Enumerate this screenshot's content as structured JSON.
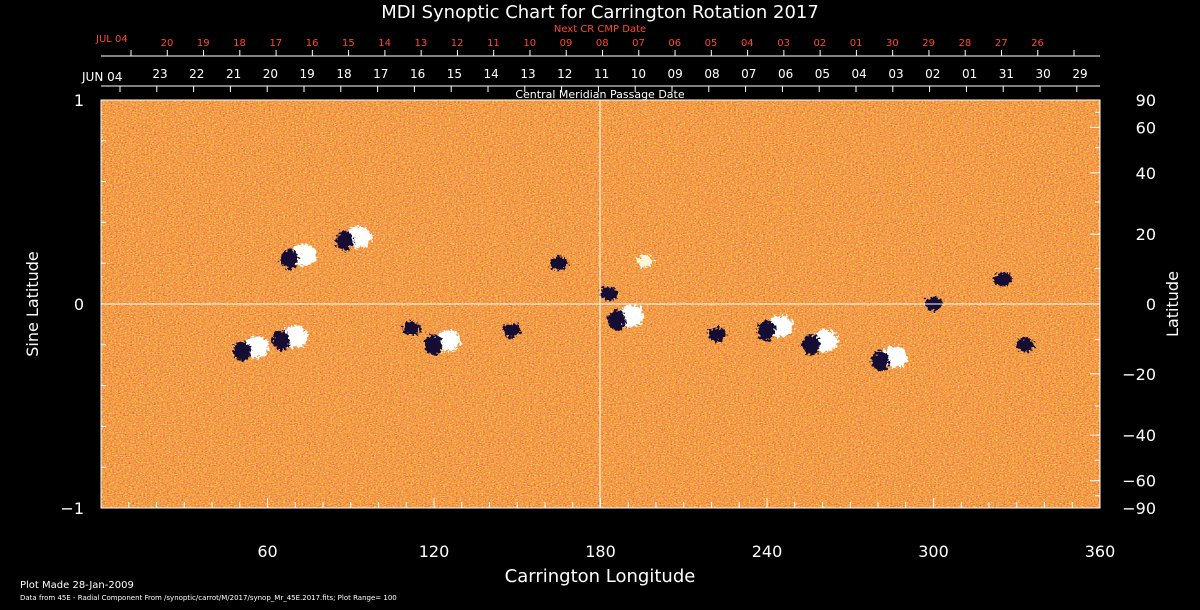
{
  "chart_data": {
    "type": "heatmap",
    "title": "MDI Synoptic Chart for Carrington Rotation 2017",
    "top_axis_label": "Next CR CMP Date",
    "top_axis_start": "JUL 04",
    "top_axis_ticks": [
      "20",
      "19",
      "18",
      "17",
      "16",
      "15",
      "14",
      "13",
      "12",
      "11",
      "10",
      "09",
      "08",
      "07",
      "06",
      "05",
      "04",
      "03",
      "02",
      "01",
      "30",
      "29",
      "28",
      "27",
      "26"
    ],
    "second_axis_label": "Central Meridian Passage Date",
    "second_axis_start": "JUN 04",
    "second_axis_ticks": [
      "23",
      "22",
      "21",
      "20",
      "19",
      "18",
      "17",
      "16",
      "15",
      "14",
      "13",
      "12",
      "11",
      "10",
      "09",
      "08",
      "07",
      "06",
      "05",
      "04",
      "03",
      "02",
      "01",
      "31",
      "30",
      "29"
    ],
    "xlabel": "Carrington Longitude",
    "xlim": [
      0,
      360
    ],
    "x_ticks": [
      60,
      120,
      180,
      240,
      300,
      360
    ],
    "ylabel_left": "Sine Latitude",
    "ylim": [
      -1,
      1
    ],
    "y_ticks_left": [
      "1",
      "0",
      "−1"
    ],
    "ylabel_right": "Latitude",
    "y_ticks_right": [
      90,
      60,
      40,
      20,
      0,
      -20,
      -40,
      -60,
      -90
    ],
    "y_ticks_right_labels": [
      "90",
      "60",
      "40",
      "20",
      "0",
      "−20",
      "−40",
      "−60",
      "−90"
    ],
    "plot_range": 100,
    "colormap": [
      "#1a1040",
      "#b01808",
      "#e84a10",
      "#ff7a20",
      "#ffd070",
      "#ffffff"
    ],
    "active_regions": [
      {
        "lon": 70,
        "sinlat": 0.23,
        "polarity": "mixed"
      },
      {
        "lon": 90,
        "sinlat": 0.32,
        "polarity": "mixed"
      },
      {
        "lon": 53,
        "sinlat": -0.22,
        "polarity": "mixed"
      },
      {
        "lon": 67,
        "sinlat": -0.17,
        "polarity": "mixed"
      },
      {
        "lon": 112,
        "sinlat": -0.12,
        "polarity": "negative"
      },
      {
        "lon": 122,
        "sinlat": -0.19,
        "polarity": "mixed"
      },
      {
        "lon": 148,
        "sinlat": -0.13,
        "polarity": "negative"
      },
      {
        "lon": 165,
        "sinlat": 0.2,
        "polarity": "negative"
      },
      {
        "lon": 183,
        "sinlat": 0.05,
        "polarity": "negative"
      },
      {
        "lon": 188,
        "sinlat": -0.07,
        "polarity": "mixed"
      },
      {
        "lon": 196,
        "sinlat": 0.21,
        "polarity": "positive"
      },
      {
        "lon": 222,
        "sinlat": -0.15,
        "polarity": "negative"
      },
      {
        "lon": 242,
        "sinlat": -0.12,
        "polarity": "mixed"
      },
      {
        "lon": 258,
        "sinlat": -0.19,
        "polarity": "mixed"
      },
      {
        "lon": 283,
        "sinlat": -0.27,
        "polarity": "mixed"
      },
      {
        "lon": 300,
        "sinlat": 0.0,
        "polarity": "negative"
      },
      {
        "lon": 325,
        "sinlat": 0.12,
        "polarity": "negative"
      },
      {
        "lon": 333,
        "sinlat": -0.2,
        "polarity": "negative"
      }
    ]
  },
  "footer": {
    "line1": "Plot Made 28-Jan-2009",
    "line2": "Data from 45E - Radial Component From /synoptic/carrot/M/2017/synop_Mr_45E.2017.fits; Plot Range= 100"
  }
}
